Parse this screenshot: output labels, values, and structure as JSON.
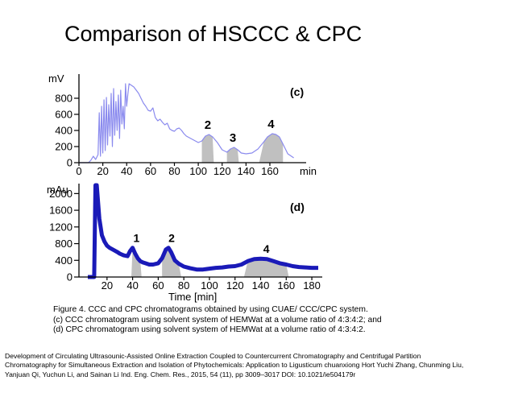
{
  "slide": {
    "title": "Comparison of HSCCC & CPC"
  },
  "caption": {
    "line1": "Figure 4. CCC and CPC chromatograms obtained by using CUAE/ CCC/CPC system.",
    "line2": "(c) CCC chromatogram using solvent system of HEMWat at a volume ratio of 4:3:4:2; and",
    "line3": "(d) CPC chromatogram using solvent system of HEMWat at a volume ratio of 4:3:4:2."
  },
  "reference": {
    "line1": "Development of Circulating Ultrasounic-Assisted Online Extraction Coupled to Countercurrent Chromatography and Centrifugal Partition",
    "line2": "Chromatography for Simultaneous Extraction and Isolation of Phytochemicals: Application to Ligusticum chuanxiong Hort Yuchi Zhang, Chunming Liu,",
    "line3": "Yanjuan Qi, Yuchun Li, and Sainan Li Ind. Eng. Chem. Res., 2015, 54 (11), pp 3009–3017 DOI: 10.1021/ie504179r"
  },
  "colors": {
    "ccc_line": "#8a8aee",
    "cpc_line": "#1a1ab8",
    "fraction_fill": "#c0c0c0",
    "axis": "#000000"
  },
  "chart_data": [
    {
      "type": "line",
      "panel_label": "(c)",
      "ylabel": "mV",
      "xlabel": "",
      "x_unit_label": "min",
      "xlim": [
        0,
        185
      ],
      "ylim": [
        0,
        1000
      ],
      "x_ticks": [
        "0",
        "20",
        "40",
        "60",
        "80",
        "100",
        "120",
        "140",
        "160"
      ],
      "y_ticks": [
        "0",
        "200",
        "400",
        "600",
        "800"
      ],
      "series": [
        {
          "x": [
            0,
            3,
            5,
            8,
            10,
            12,
            14,
            16,
            17,
            18,
            19,
            20,
            21,
            22,
            23,
            24,
            25,
            26,
            27,
            28,
            29,
            30,
            31,
            32,
            33,
            34,
            35,
            36,
            37,
            38,
            39,
            40,
            41,
            42,
            44,
            46,
            48,
            50,
            52,
            54,
            56,
            58,
            60,
            62,
            64,
            66,
            68,
            70,
            72,
            74,
            76,
            78,
            80,
            82,
            84,
            86,
            88,
            90,
            95,
            100,
            103,
            106,
            109,
            112,
            116,
            120,
            124,
            127,
            130,
            133,
            136,
            140,
            145,
            150,
            155,
            158,
            162,
            165,
            168,
            171,
            175,
            180
          ],
          "y": [
            0,
            0,
            0,
            0,
            30,
            80,
            40,
            100,
            620,
            80,
            700,
            120,
            780,
            150,
            810,
            220,
            720,
            330,
            860,
            200,
            920,
            340,
            760,
            400,
            840,
            300,
            900,
            480,
            700,
            420,
            980,
            700,
            850,
            980,
            960,
            940,
            900,
            860,
            800,
            740,
            700,
            650,
            640,
            680,
            560,
            520,
            540,
            500,
            470,
            490,
            420,
            400,
            390,
            420,
            430,
            400,
            360,
            330,
            290,
            250,
            270,
            330,
            350,
            320,
            250,
            160,
            130,
            170,
            190,
            160,
            120,
            110,
            120,
            170,
            260,
            320,
            360,
            350,
            320,
            230,
            110,
            60
          ]
        }
      ],
      "fractions": [
        {
          "label": "2",
          "x_start": 103,
          "x_end": 113
        },
        {
          "label": "3",
          "x_start": 124,
          "x_end": 134
        },
        {
          "label": "4",
          "x_start": 151,
          "x_end": 171
        }
      ]
    },
    {
      "type": "line",
      "panel_label": "(d)",
      "ylabel": "mAu",
      "xlabel": "Time [min]",
      "xlim": [
        5,
        185
      ],
      "ylim": [
        0,
        2200
      ],
      "x_ticks": [
        "20",
        "40",
        "60",
        "80",
        "100",
        "120",
        "140",
        "160",
        "180"
      ],
      "y_ticks": [
        "0",
        "400",
        "800",
        "1200",
        "1600",
        "2000"
      ],
      "series": [
        {
          "x": [
            5,
            8,
            10,
            11,
            12,
            14,
            16,
            18,
            20,
            22,
            25,
            28,
            30,
            33,
            36,
            38,
            40,
            42,
            44,
            46,
            48,
            50,
            53,
            56,
            60,
            63,
            66,
            68,
            70,
            73,
            76,
            80,
            85,
            90,
            95,
            100,
            105,
            110,
            115,
            120,
            125,
            130,
            135,
            140,
            145,
            150,
            155,
            160,
            165,
            170,
            175,
            180,
            185
          ],
          "y": [
            0,
            0,
            0,
            2200,
            2200,
            1400,
            1000,
            850,
            750,
            700,
            650,
            600,
            560,
            520,
            500,
            620,
            700,
            560,
            450,
            380,
            350,
            330,
            300,
            300,
            330,
            450,
            660,
            700,
            600,
            400,
            320,
            250,
            210,
            180,
            180,
            200,
            220,
            230,
            250,
            260,
            300,
            380,
            430,
            440,
            430,
            380,
            330,
            300,
            260,
            240,
            230,
            220,
            220
          ]
        }
      ],
      "fractions": [
        {
          "label": "1",
          "x_start": 39,
          "x_end": 47
        },
        {
          "label": "2",
          "x_start": 63,
          "x_end": 78
        },
        {
          "label": "4",
          "x_start": 127,
          "x_end": 162
        }
      ]
    }
  ]
}
